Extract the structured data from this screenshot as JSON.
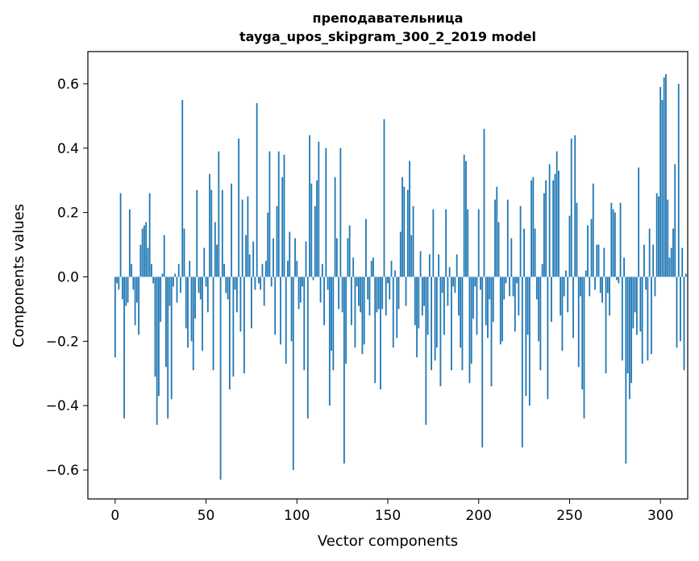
{
  "chart_data": {
    "type": "bar",
    "title_line1": "преподавательница",
    "title_line2": "tayga_upos_skipgram_300_2_2019 model",
    "xlabel": "Vector components",
    "ylabel": "Components values",
    "xlim": [
      -15,
      315
    ],
    "ylim": [
      -0.69,
      0.7
    ],
    "xticks": [
      0,
      50,
      100,
      150,
      200,
      250,
      300
    ],
    "xtick_labels": [
      "0",
      "50",
      "100",
      "150",
      "200",
      "250",
      "300"
    ],
    "yticks": [
      -0.6,
      -0.4,
      -0.2,
      0.0,
      0.2,
      0.4,
      0.6
    ],
    "ytick_labels": [
      "−0.6",
      "−0.4",
      "−0.2",
      "0.0",
      "0.2",
      "0.4",
      "0.6"
    ],
    "bar_color": "#1f77b4",
    "grid": false,
    "values": [
      -0.25,
      -0.02,
      -0.04,
      0.26,
      -0.07,
      -0.44,
      -0.09,
      -0.08,
      0.21,
      0.04,
      -0.04,
      -0.15,
      -0.08,
      -0.18,
      0.1,
      0.15,
      0.16,
      0.17,
      0.09,
      0.26,
      0.04,
      -0.02,
      -0.31,
      -0.46,
      -0.37,
      -0.14,
      0.01,
      0.13,
      -0.28,
      -0.44,
      -0.09,
      -0.38,
      -0.03,
      0.01,
      -0.08,
      0.04,
      -0.05,
      0.55,
      0.15,
      -0.16,
      -0.22,
      0.05,
      -0.2,
      -0.29,
      -0.13,
      0.27,
      -0.05,
      -0.07,
      -0.23,
      0.09,
      -0.03,
      -0.11,
      0.32,
      0.27,
      -0.29,
      0.17,
      0.1,
      0.39,
      -0.63,
      0.27,
      0.04,
      -0.05,
      -0.07,
      -0.35,
      0.29,
      -0.31,
      -0.04,
      -0.11,
      0.43,
      -0.17,
      0.24,
      -0.3,
      0.13,
      0.25,
      0.07,
      -0.16,
      0.11,
      -0.04,
      0.54,
      -0.02,
      -0.04,
      0.04,
      -0.09,
      0.05,
      0.2,
      0.39,
      -0.03,
      0.12,
      -0.18,
      0.22,
      0.39,
      -0.21,
      0.31,
      0.38,
      -0.27,
      0.05,
      0.14,
      -0.2,
      -0.6,
      0.12,
      0.05,
      -0.1,
      -0.08,
      -0.03,
      -0.29,
      0.11,
      -0.44,
      0.44,
      0.29,
      -0.01,
      0.22,
      0.3,
      0.42,
      -0.08,
      0.04,
      -0.15,
      0.4,
      -0.04,
      -0.4,
      -0.23,
      -0.29,
      0.31,
      0.12,
      -0.1,
      0.4,
      -0.11,
      -0.58,
      -0.27,
      0.12,
      0.16,
      -0.15,
      0.06,
      -0.22,
      -0.03,
      -0.09,
      -0.11,
      -0.24,
      -0.21,
      0.18,
      -0.07,
      -0.12,
      0.05,
      0.06,
      -0.33,
      -0.11,
      -0.1,
      -0.35,
      -0.1,
      0.49,
      -0.12,
      -0.02,
      -0.07,
      0.05,
      -0.22,
      0.02,
      -0.19,
      -0.1,
      0.14,
      0.31,
      0.28,
      -0.09,
      0.27,
      0.36,
      0.13,
      0.22,
      -0.15,
      -0.25,
      -0.16,
      0.08,
      -0.12,
      -0.09,
      -0.46,
      -0.18,
      0.07,
      -0.29,
      0.21,
      -0.26,
      -0.22,
      0.07,
      -0.34,
      -0.05,
      -0.18,
      0.21,
      -0.09,
      0.03,
      -0.29,
      -0.03,
      -0.05,
      0.07,
      -0.12,
      -0.22,
      -0.29,
      0.38,
      0.36,
      0.21,
      -0.33,
      -0.27,
      -0.13,
      -0.03,
      -0.18,
      0.21,
      -0.04,
      -0.53,
      0.46,
      -0.15,
      -0.19,
      -0.07,
      -0.34,
      -0.14,
      0.24,
      0.28,
      0.17,
      -0.21,
      -0.2,
      -0.07,
      -0.02,
      0.24,
      -0.06,
      0.12,
      -0.06,
      -0.17,
      -0.02,
      -0.12,
      0.22,
      -0.53,
      0.15,
      -0.37,
      -0.18,
      -0.4,
      0.3,
      0.31,
      0.15,
      -0.07,
      -0.2,
      -0.29,
      0.04,
      0.26,
      0.3,
      -0.38,
      0.35,
      -0.14,
      0.3,
      0.32,
      0.39,
      0.33,
      -0.12,
      -0.23,
      -0.06,
      0.02,
      -0.11,
      0.19,
      0.43,
      -0.19,
      0.44,
      0.23,
      -0.28,
      -0.06,
      -0.35,
      -0.44,
      0.02,
      0.16,
      -0.06,
      0.18,
      0.29,
      -0.04,
      0.1,
      0.1,
      -0.05,
      -0.08,
      0.09,
      -0.3,
      -0.05,
      -0.12,
      0.23,
      0.21,
      0.2,
      -0.01,
      -0.02,
      0.23,
      -0.26,
      0.06,
      -0.58,
      -0.3,
      -0.38,
      -0.33,
      -0.16,
      -0.11,
      -0.18,
      0.34,
      -0.17,
      -0.27,
      0.1,
      -0.04,
      -0.26,
      0.15,
      -0.24,
      0.1,
      -0.06,
      0.26,
      0.25,
      0.59,
      0.55,
      0.62,
      0.63,
      0.24,
      0.06,
      0.09,
      0.15,
      0.35,
      -0.22,
      0.6,
      -0.2,
      0.09,
      -0.29,
      0.01
    ]
  }
}
